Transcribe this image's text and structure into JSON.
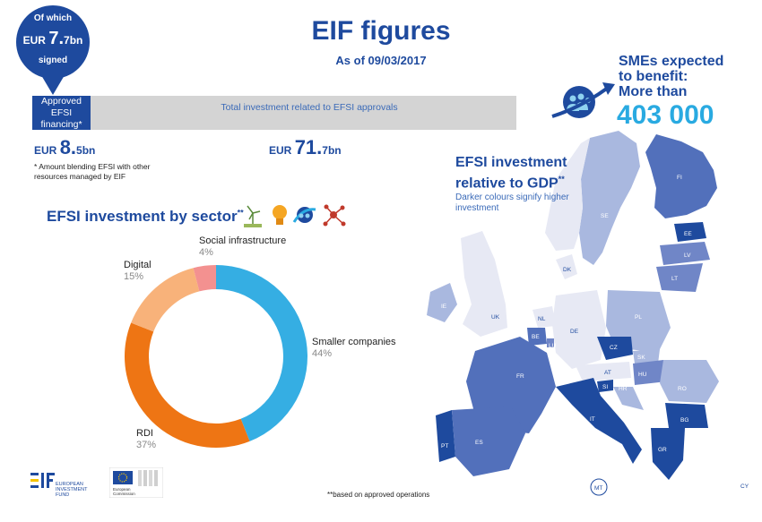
{
  "header": {
    "title": "EIF figures",
    "as_of": "As of 09/03/2017"
  },
  "signed_badge": {
    "of_which": "Of which",
    "currency": "EUR",
    "amount_big": "7.",
    "amount_small": "7bn",
    "signed": "signed"
  },
  "investment_bar": {
    "approved_label": "Approved EFSI financing*",
    "total_label": "Total investment related to EFSI approvals",
    "approved_currency": "EUR",
    "approved_big": "8.",
    "approved_small": "5bn",
    "total_currency": "EUR",
    "total_big": "71.",
    "total_small": "7bn",
    "approved_share": 0.12,
    "footnote": "* Amount blending EFSI with other resources managed by EIF"
  },
  "sector": {
    "title": "EFSI investment by sector",
    "title_mark": "**",
    "icons": [
      "wind-turbine-icon",
      "lightbulb-icon",
      "sme-arrow-icon",
      "network-icon"
    ]
  },
  "chart_data": {
    "type": "pie",
    "title": "EFSI investment by sector",
    "categories": [
      "Smaller companies",
      "RDI",
      "Digital",
      "Social infrastructure"
    ],
    "values": [
      44,
      37,
      15,
      4
    ],
    "labels": [
      "44%",
      "37%",
      "15%",
      "4%"
    ],
    "colors": [
      "#35aee3",
      "#ee7514",
      "#f8b27a",
      "#f39190"
    ],
    "donut": true
  },
  "smes": {
    "line1": "SMEs expected",
    "line2": "to benefit:",
    "line3": "More than",
    "number": "403 000"
  },
  "gdp": {
    "title_line1": "EFSI investment",
    "title_line2": "relative to GDP",
    "title_mark": "**",
    "subtitle": "Darker colours signify higher investment"
  },
  "countries": [
    "FI",
    "SE",
    "EE",
    "LV",
    "LT",
    "DK",
    "IE",
    "UK",
    "NL",
    "BE",
    "LU",
    "DE",
    "PL",
    "CZ",
    "SK",
    "AT",
    "HU",
    "SI",
    "HR",
    "RO",
    "FR",
    "IT",
    "BG",
    "PT",
    "ES",
    "GR",
    "MT",
    "CY"
  ],
  "footer": {
    "note": "**based on approved operations",
    "eif_logo_text": "EUROPEAN INVESTMENT FUND",
    "ec_logo_text": "European Commission"
  },
  "colors": {
    "brand_blue": "#1e4a9e",
    "accent_cyan": "#29aae1",
    "bar_gray": "#d4d4d4"
  }
}
